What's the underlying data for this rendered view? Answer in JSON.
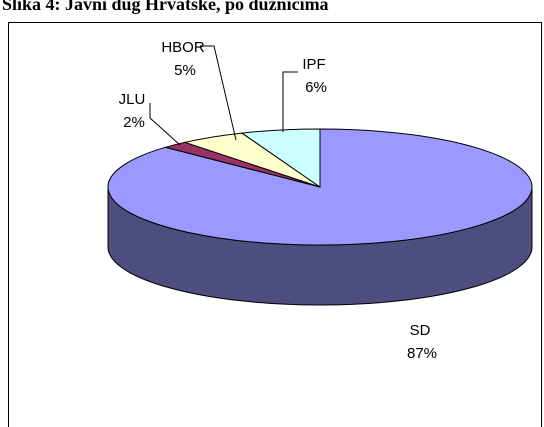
{
  "chart_data": {
    "type": "pie3d",
    "title": "Slika 4: Javni dug Hrvatske, po dužnicima",
    "categories": [
      "SD",
      "JLU",
      "HBOR",
      "IPF"
    ],
    "values": [
      87,
      2,
      5,
      6
    ],
    "value_labels": [
      "87%",
      "2%",
      "5%",
      "6%"
    ],
    "colors": [
      "#9999ff",
      "#993366",
      "#ffffcc",
      "#ccffff"
    ],
    "side_colors": [
      "#4d4d80",
      "#4d1a33",
      "#808066",
      "#668080"
    ]
  }
}
